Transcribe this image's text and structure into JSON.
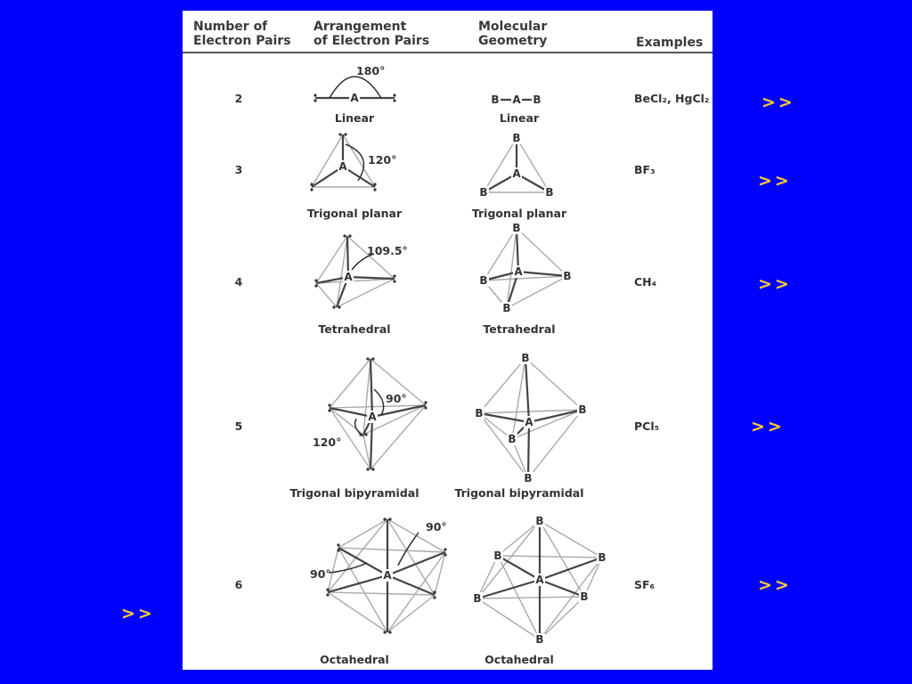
{
  "table": {
    "headers": [
      "Number of\nElectron Pairs",
      "Arrangement\nof Electron Pairs",
      "Molecular\nGeometry",
      "Examples"
    ],
    "central_atom": "A",
    "outer_atom": "B",
    "rows": [
      {
        "pairs": "2",
        "arrangement": "Linear",
        "geometry": "Linear",
        "example": "BeCl₂, HgCl₂",
        "angles": [
          "180°"
        ]
      },
      {
        "pairs": "3",
        "arrangement": "Trigonal planar",
        "geometry": "Trigonal planar",
        "example": "BF₃",
        "angles": [
          "120°"
        ]
      },
      {
        "pairs": "4",
        "arrangement": "Tetrahedral",
        "geometry": "Tetrahedral",
        "example": "CH₄",
        "angles": [
          "109.5°"
        ]
      },
      {
        "pairs": "5",
        "arrangement": "Trigonal bipyramidal",
        "geometry": "Trigonal bipyramidal",
        "example": "PCl₅",
        "angles": [
          "90°",
          "120°"
        ]
      },
      {
        "pairs": "6",
        "arrangement": "Octahedral",
        "geometry": "Octahedral",
        "example": "SF₆",
        "angles": [
          "90°",
          "90°"
        ]
      }
    ]
  },
  "links": [
    ">>",
    ">>",
    ">>",
    ">>",
    ">>",
    ">>"
  ],
  "colors": {
    "background": "#0000fe",
    "link": "#ffcc33",
    "sheet": "#ffffff"
  }
}
